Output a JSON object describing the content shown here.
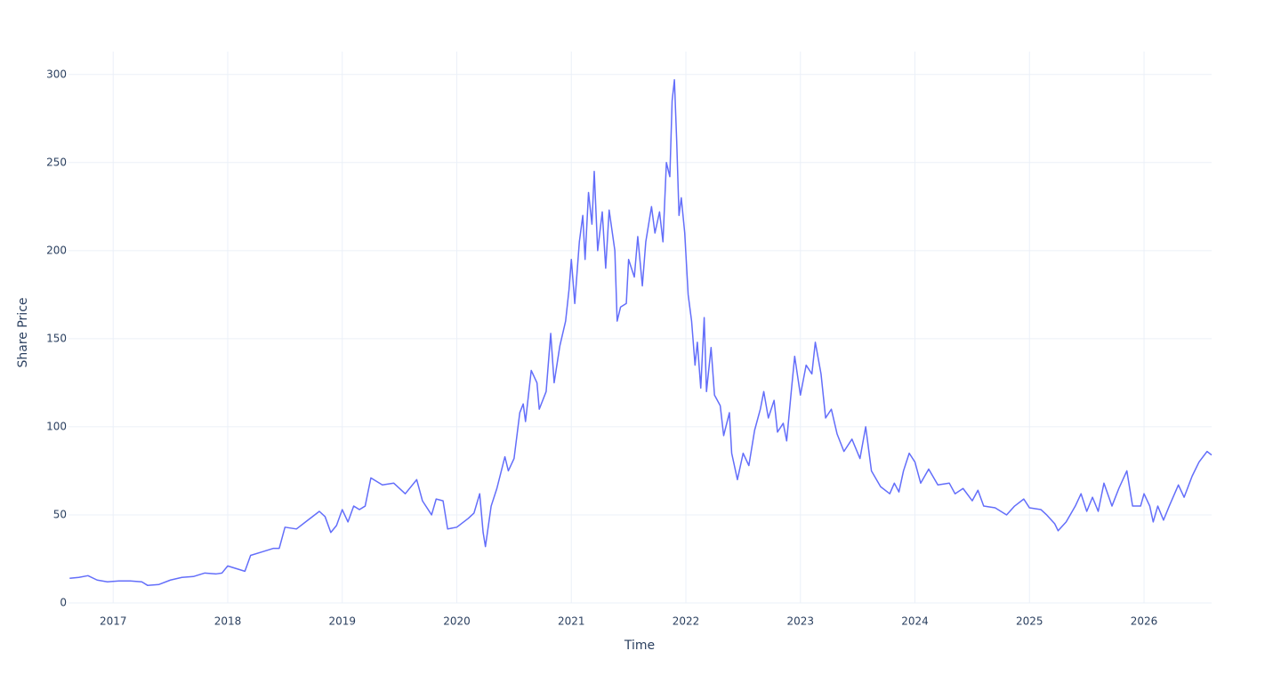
{
  "chart_data": {
    "type": "line",
    "xlabel": "Time",
    "ylabel": "Share Price",
    "color": "#636efa",
    "grid": true,
    "xlim": [
      2016.61,
      2026.59
    ],
    "ylim": [
      0,
      313
    ],
    "xticks": [
      2017,
      2018,
      2019,
      2020,
      2021,
      2022,
      2023,
      2024,
      2025,
      2026
    ],
    "yticks": [
      0,
      50,
      100,
      150,
      200,
      250,
      300
    ],
    "x": [
      2016.62,
      2016.7,
      2016.78,
      2016.86,
      2016.95,
      2017.05,
      2017.15,
      2017.25,
      2017.3,
      2017.4,
      2017.5,
      2017.6,
      2017.7,
      2017.8,
      2017.9,
      2017.95,
      2018.0,
      2018.1,
      2018.15,
      2018.2,
      2018.3,
      2018.4,
      2018.45,
      2018.5,
      2018.6,
      2018.7,
      2018.8,
      2018.85,
      2018.9,
      2018.95,
      2019.0,
      2019.05,
      2019.1,
      2019.15,
      2019.2,
      2019.25,
      2019.35,
      2019.45,
      2019.55,
      2019.65,
      2019.7,
      2019.78,
      2019.82,
      2019.88,
      2019.92,
      2020.0,
      2020.1,
      2020.15,
      2020.2,
      2020.23,
      2020.25,
      2020.3,
      2020.35,
      2020.42,
      2020.45,
      2020.5,
      2020.55,
      2020.58,
      2020.6,
      2020.65,
      2020.7,
      2020.72,
      2020.78,
      2020.82,
      2020.85,
      2020.9,
      2020.95,
      2020.98,
      2021.0,
      2021.03,
      2021.07,
      2021.1,
      2021.12,
      2021.15,
      2021.18,
      2021.2,
      2021.23,
      2021.27,
      2021.3,
      2021.33,
      2021.38,
      2021.4,
      2021.43,
      2021.48,
      2021.5,
      2021.55,
      2021.58,
      2021.62,
      2021.65,
      2021.7,
      2021.73,
      2021.77,
      2021.8,
      2021.83,
      2021.86,
      2021.88,
      2021.9,
      2021.92,
      2021.94,
      2021.96,
      2021.99,
      2022.02,
      2022.05,
      2022.08,
      2022.1,
      2022.13,
      2022.16,
      2022.18,
      2022.22,
      2022.25,
      2022.3,
      2022.33,
      2022.38,
      2022.4,
      2022.45,
      2022.5,
      2022.55,
      2022.6,
      2022.65,
      2022.68,
      2022.72,
      2022.77,
      2022.8,
      2022.85,
      2022.88,
      2022.92,
      2022.95,
      2023.0,
      2023.05,
      2023.1,
      2023.13,
      2023.18,
      2023.22,
      2023.27,
      2023.32,
      2023.38,
      2023.45,
      2023.52,
      2023.57,
      2023.62,
      2023.7,
      2023.78,
      2023.82,
      2023.86,
      2023.9,
      2023.95,
      2024.0,
      2024.05,
      2024.12,
      2024.2,
      2024.3,
      2024.35,
      2024.42,
      2024.5,
      2024.55,
      2024.6,
      2024.7,
      2024.8,
      2024.87,
      2024.95,
      2025.0,
      2025.1,
      2025.15,
      2025.22,
      2025.25,
      2025.32,
      2025.4,
      2025.45,
      2025.5,
      2025.55,
      2025.6,
      2025.65,
      2025.72,
      2025.78,
      2025.85,
      2025.9,
      2025.97,
      2026.0,
      2026.05,
      2026.08,
      2026.12,
      2026.17,
      2026.22,
      2026.3,
      2026.35,
      2026.42,
      2026.48,
      2026.55,
      2026.59
    ],
    "values": [
      14,
      14.5,
      15.5,
      13,
      12,
      12.5,
      12.5,
      12,
      10,
      10.5,
      13,
      14.5,
      15,
      17,
      16.5,
      17,
      21,
      19,
      18,
      27,
      29,
      31,
      31,
      43,
      42,
      47,
      52,
      49,
      40,
      44,
      53,
      46,
      55,
      53,
      55,
      71,
      67,
      68,
      62,
      70,
      58,
      50,
      59,
      58,
      42,
      43,
      48,
      51,
      62,
      40,
      32,
      55,
      65,
      83,
      75,
      82,
      108,
      113,
      103,
      132,
      125,
      110,
      120,
      153,
      125,
      146,
      160,
      178,
      195,
      170,
      205,
      220,
      195,
      233,
      215,
      245,
      200,
      222,
      190,
      223,
      200,
      160,
      168,
      170,
      195,
      185,
      208,
      180,
      205,
      225,
      210,
      222,
      205,
      250,
      242,
      285,
      297,
      262,
      220,
      230,
      210,
      175,
      160,
      135,
      148,
      122,
      162,
      120,
      145,
      118,
      112,
      95,
      108,
      85,
      70,
      85,
      78,
      98,
      110,
      120,
      105,
      115,
      97,
      102,
      92,
      120,
      140,
      118,
      135,
      130,
      148,
      130,
      105,
      110,
      96,
      86,
      93,
      82,
      100,
      75,
      66,
      62,
      68,
      63,
      75,
      85,
      80,
      68,
      76,
      67,
      68,
      62,
      65,
      58,
      64,
      55,
      54,
      50,
      55,
      59,
      54,
      53,
      50,
      45,
      41,
      46,
      55,
      62,
      52,
      60,
      52,
      68,
      55,
      65,
      75,
      55,
      55,
      62,
      55,
      46,
      55,
      47,
      55,
      67,
      60,
      72,
      80,
      86,
      84
    ]
  }
}
